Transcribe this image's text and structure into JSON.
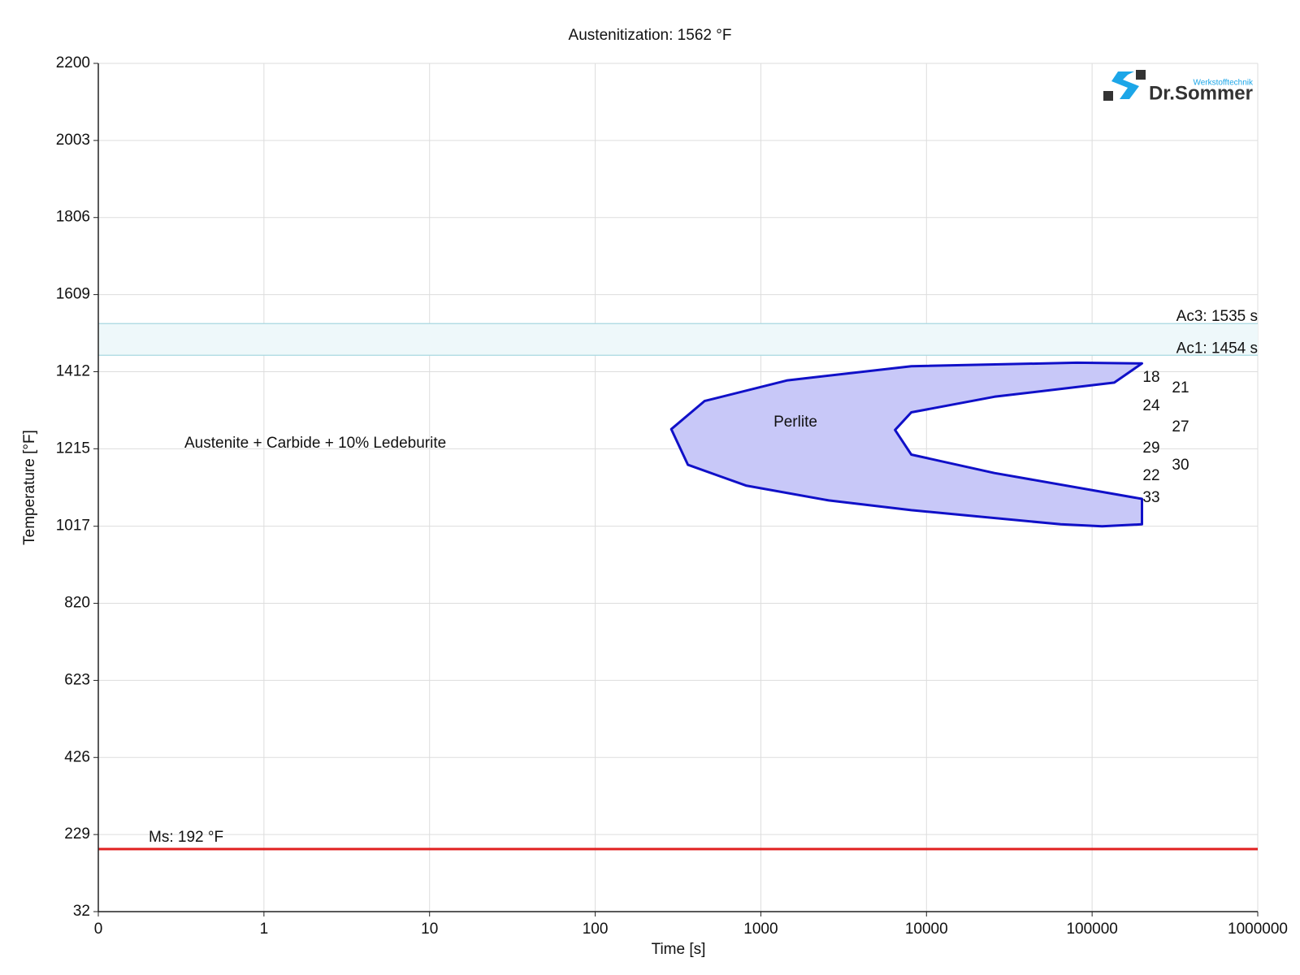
{
  "chart_data": {
    "type": "ttt",
    "title": "Austenitization: 1562 °F",
    "xlabel": "Time [s]",
    "ylabel": "Temperature [°F]",
    "xscale": "log",
    "grid": true,
    "xlim": [
      0.1,
      1000000
    ],
    "xticks": [
      {
        "value": 0.1,
        "label": "0"
      },
      1,
      10,
      100,
      1000,
      10000,
      100000,
      1000000
    ],
    "ylim": [
      32,
      2200
    ],
    "yticks": [
      32,
      229,
      426,
      623,
      820,
      1017,
      1215,
      1412,
      1609,
      1806,
      2003,
      2200
    ],
    "band": {
      "color": "#eef8fa",
      "edge": "#a8d8e0"
    },
    "reference_lines": [
      {
        "value": 1535,
        "label": "Ac3: 1535 s",
        "color": "#a8d8e0"
      },
      {
        "value": 1454,
        "label": "Ac1: 1454 s",
        "color": "#a8d8e0"
      },
      {
        "value": 192,
        "label": "Ms: 192 °F",
        "color": "#e02020"
      }
    ],
    "regions": [
      {
        "name": "Perlite",
        "color": "#c8c8f8",
        "edge": "#1010c8",
        "x": [
          200000,
          81000,
          8100,
          1450,
          457,
          288,
          363,
          813,
          2570,
          8100,
          64600,
          115000,
          200000,
          200000,
          25700,
          8100,
          6460,
          8100,
          25700,
          136000
        ],
        "y": [
          1433,
          1435,
          1426,
          1390,
          1337,
          1265,
          1174,
          1121,
          1083,
          1058,
          1022,
          1017,
          1022,
          1087,
          1153,
          1200,
          1263,
          1308,
          1348,
          1384
        ]
      }
    ],
    "annotations": [
      "Austenite + Carbide + 10% Ledeburite"
    ],
    "hardness": [
      18,
      21,
      24,
      27,
      29,
      30,
      22,
      33
    ],
    "logo": {
      "name": "Dr.Sommer",
      "tagline": "Werkstofftechnik"
    }
  }
}
